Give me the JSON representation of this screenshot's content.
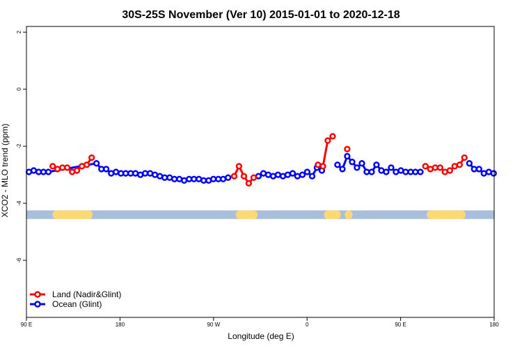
{
  "chart_data": {
    "type": "line",
    "title": "30S-25S November (Ver 10)   2015-01-01 to 2020-12-18",
    "xlabel": "Longitude (deg E)",
    "ylabel": "XCO2 - MLO trend (ppm)",
    "xlim": [
      0,
      360
    ],
    "ylim": [
      -8,
      2.2
    ],
    "x_ticks": [
      {
        "value": 0,
        "label": "90 E"
      },
      {
        "value": 72,
        "label": "180"
      },
      {
        "value": 144,
        "label": "90 W"
      },
      {
        "value": 216,
        "label": "0"
      },
      {
        "value": 288,
        "label": "90 E"
      },
      {
        "value": 360,
        "label": "180"
      }
    ],
    "y_ticks": [
      {
        "value": 2,
        "label": "2"
      },
      {
        "value": 0,
        "label": "0"
      },
      {
        "value": -2,
        "label": "-2"
      },
      {
        "value": -4,
        "label": "-4"
      },
      {
        "value": -6,
        "label": "-6"
      }
    ],
    "legend": {
      "position": "bottom-left",
      "items": [
        "Land (Nadir&Glint)",
        "Ocean (Glint)"
      ]
    },
    "series": [
      {
        "name": "Land (Nadir&Glint)",
        "color": "#ff0000",
        "segments": [
          {
            "x": [
              20.2,
              23.9,
              27.7,
              31.4,
              35.2,
              38.9,
              42.7,
              46.4,
              50.2
            ],
            "y": [
              -2.7,
              -2.8,
              -2.75,
              -2.75,
              -2.9,
              -2.85,
              -2.7,
              -2.65,
              -2.4
            ]
          },
          {
            "x": [
              159.9,
              163.6,
              167.4,
              171.1,
              174.9
            ],
            "y": [
              -3.05,
              -2.7,
              -3.05,
              -3.3,
              -3.1
            ]
          },
          {
            "x": [
              224.4,
              228.2,
              231.9,
              235.7
            ],
            "y": [
              -2.65,
              -2.7,
              -1.8,
              -1.65
            ]
          },
          {
            "x": [
              246.9
            ],
            "y": [
              -2.1
            ]
          },
          {
            "x": [
              307.1,
              310.9,
              314.6,
              318.4,
              322.1,
              325.9,
              329.6,
              333.4,
              337.1
            ],
            "y": [
              -2.7,
              -2.8,
              -2.75,
              -2.75,
              -2.9,
              -2.85,
              -2.7,
              -2.65,
              -2.4
            ]
          }
        ]
      },
      {
        "name": "Ocean (Glint)",
        "color": "#0000ff",
        "segments": [
          {
            "x": [
              1.9,
              5.6,
              9.4,
              13.1,
              16.9,
              53.9,
              57.7,
              61.4,
              65.2,
              68.9,
              72.7,
              76.4,
              80.2,
              83.9,
              87.7,
              91.4,
              95.2,
              98.9,
              102.7,
              106.4,
              110.2,
              113.9,
              117.7,
              121.4,
              125.2,
              128.9,
              132.7,
              136.4,
              140.2,
              143.9,
              147.7,
              151.4,
              155.2
            ],
            "y": [
              -2.9,
              -2.85,
              -2.9,
              -2.9,
              -2.9,
              -2.6,
              -2.8,
              -2.8,
              -2.95,
              -2.9,
              -2.95,
              -2.95,
              -2.95,
              -2.95,
              -3.0,
              -2.95,
              -2.95,
              -3.0,
              -3.05,
              -3.1,
              -3.1,
              -3.15,
              -3.15,
              -3.2,
              -3.15,
              -3.15,
              -3.15,
              -3.2,
              -3.2,
              -3.15,
              -3.15,
              -3.15,
              -3.1
            ]
          },
          {
            "x": [
              178.6,
              182.4,
              186.1,
              189.9,
              193.6,
              197.4,
              201.1,
              204.9,
              208.6,
              212.4,
              216.1,
              219.9,
              223.6,
              227.4
            ],
            "y": [
              -3.05,
              -2.95,
              -3.0,
              -3.05,
              -3.0,
              -3.05,
              -3.0,
              -2.95,
              -3.05,
              -3.0,
              -2.9,
              -3.05,
              -2.75,
              -2.85
            ]
          },
          {
            "x": [
              239.4,
              243.2,
              246.9,
              250.7,
              254.4,
              258.2,
              261.9,
              265.7,
              269.4,
              273.2,
              276.9,
              280.7,
              284.4,
              288.2,
              291.9,
              295.7,
              299.4,
              303.2
            ],
            "y": [
              -2.65,
              -2.8,
              -2.35,
              -2.55,
              -2.75,
              -2.6,
              -2.9,
              -2.9,
              -2.65,
              -2.85,
              -2.9,
              -2.75,
              -2.9,
              -2.85,
              -2.9,
              -2.9,
              -2.9,
              -2.9
            ]
          },
          {
            "x": [
              340.9,
              344.6,
              348.4,
              352.1,
              355.9,
              359.6
            ],
            "y": [
              -2.6,
              -2.8,
              -2.8,
              -2.95,
              -2.9,
              -2.95
            ]
          }
        ]
      }
    ],
    "surface_band": {
      "y": [
        -4.25,
        -4.55
      ],
      "ocean_color": "#a7bedc",
      "land_color": "#fcd972",
      "land_ranges": [
        [
          20,
          51
        ],
        [
          161,
          178
        ],
        [
          229,
          242
        ],
        [
          245,
          251
        ],
        [
          308,
          338
        ]
      ]
    }
  }
}
